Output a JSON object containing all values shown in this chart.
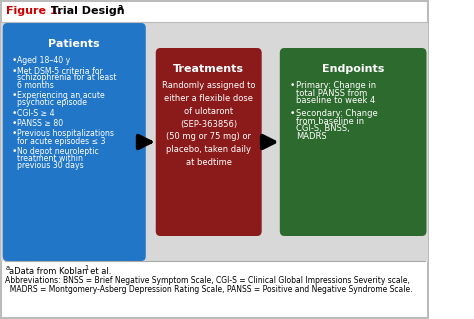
{
  "bg_color": "#e8e8e8",
  "box1": {
    "color": "#2176c7",
    "title": "Patients",
    "bullets": [
      "Aged 18–40 y",
      "Met DSM-5 criteria for\nschizophrenia for at least\n6 months",
      "Experiencing an acute\npsychotic episode",
      "CGI-S ≥ 4",
      "PANSS ≥ 80",
      "Previous hospitalizations\nfor acute episodes ≤ 3",
      "No depot neuroleptic\ntreatment within\nprevious 30 days"
    ]
  },
  "box2": {
    "color": "#8b1a1a",
    "title": "Treatments",
    "text": "Randomly assigned to\neither a flexible dose\nof ulotaront\n(SEP-363856)\n(50 mg or 75 mg) or\nplacebo, taken daily\nat bedtime"
  },
  "box3": {
    "color": "#2d6a2d",
    "title": "Endpoints",
    "bullets": [
      "Primary: Change in\ntotal PANSS from\nbaseline to week 4",
      "Secondary: Change\nfrom baseline in\nCGI-S, BNSS,\nMADRS"
    ]
  },
  "title_red": "Figure 1.",
  "title_black": " Trial Design",
  "title_super": "a",
  "footnote1": "aData from Koblan et al.",
  "footnote1_super": "1",
  "footnote2_line1": "Abbreviations: BNSS = Brief Negative Symptom Scale, CGI-S = Clinical Global Impressions Severity scale,",
  "footnote2_line2": "  MADRS = Montgomery-Asberg Depression Rating Scale, PANSS = Positive and Negative Syndrome Scale."
}
